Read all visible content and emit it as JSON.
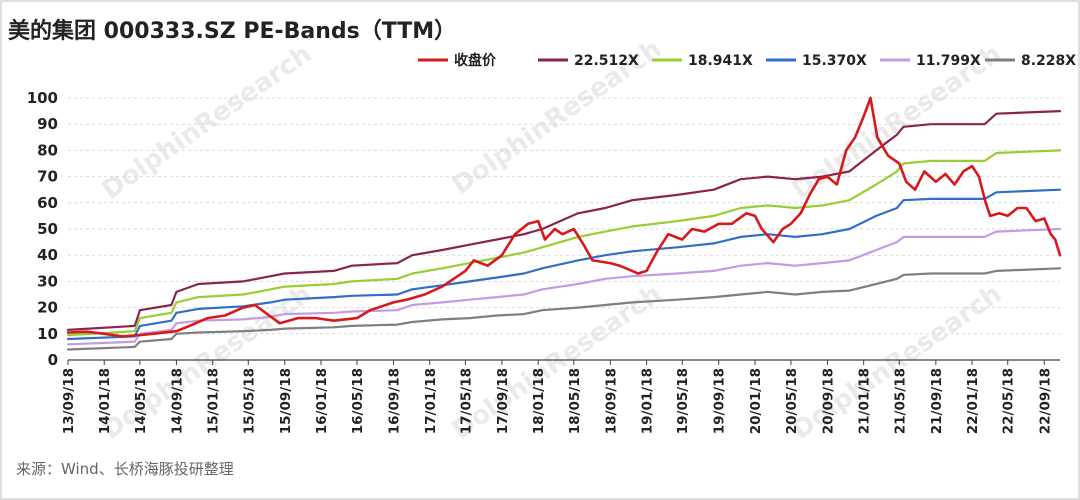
{
  "chart_data": {
    "type": "line",
    "title": "美的集团 000333.SZ   PE-Bands（TTM）",
    "source": "来源：Wind、长桥海豚投研整理",
    "watermark": "DolphinResearch",
    "ylim": [
      0,
      100
    ],
    "yticks": [
      0,
      10,
      20,
      30,
      40,
      50,
      60,
      70,
      80,
      90,
      100
    ],
    "xlim": [
      "2013-09-18",
      "2022-11-10"
    ],
    "xtick_labels": [
      "13/09/18",
      "14/01/18",
      "14/05/18",
      "14/09/18",
      "15/01/18",
      "15/05/18",
      "15/09/18",
      "16/01/18",
      "16/05/18",
      "16/09/18",
      "17/01/18",
      "17/05/18",
      "17/09/18",
      "18/01/18",
      "18/05/18",
      "18/09/18",
      "19/01/18",
      "19/05/18",
      "19/09/18",
      "20/01/18",
      "20/05/18",
      "20/09/18",
      "21/01/18",
      "21/05/18",
      "21/09/18",
      "22/01/18",
      "22/05/18",
      "22/09/18"
    ],
    "series": [
      {
        "name": "收盘价",
        "color": "#d7191c",
        "width": 2.6,
        "points": [
          [
            "2013-09-18",
            10.5
          ],
          [
            "2013-11-20",
            10.8
          ],
          [
            "2014-01-18",
            10
          ],
          [
            "2014-03-20",
            9
          ],
          [
            "2014-05-18",
            9.5
          ],
          [
            "2014-07-01",
            10
          ],
          [
            "2014-09-18",
            11
          ],
          [
            "2014-11-01",
            13
          ],
          [
            "2015-01-01",
            16
          ],
          [
            "2015-03-01",
            17
          ],
          [
            "2015-05-01",
            20
          ],
          [
            "2015-06-10",
            21
          ],
          [
            "2015-07-15",
            18
          ],
          [
            "2015-09-01",
            14
          ],
          [
            "2015-11-01",
            16
          ],
          [
            "2016-01-01",
            16
          ],
          [
            "2016-03-01",
            15
          ],
          [
            "2016-05-18",
            16
          ],
          [
            "2016-07-01",
            19
          ],
          [
            "2016-09-18",
            22
          ],
          [
            "2016-11-01",
            23
          ],
          [
            "2017-01-01",
            25
          ],
          [
            "2017-03-01",
            28
          ],
          [
            "2017-05-18",
            34
          ],
          [
            "2017-06-15",
            38
          ],
          [
            "2017-08-01",
            36
          ],
          [
            "2017-09-18",
            40
          ],
          [
            "2017-11-01",
            48
          ],
          [
            "2017-12-15",
            52
          ],
          [
            "2018-01-18",
            53
          ],
          [
            "2018-02-10",
            46
          ],
          [
            "2018-03-15",
            50
          ],
          [
            "2018-04-10",
            48
          ],
          [
            "2018-05-18",
            50
          ],
          [
            "2018-06-20",
            44
          ],
          [
            "2018-07-20",
            38
          ],
          [
            "2018-09-18",
            37
          ],
          [
            "2018-10-20",
            36
          ],
          [
            "2018-12-20",
            33
          ],
          [
            "2019-01-18",
            34
          ],
          [
            "2019-02-20",
            41
          ],
          [
            "2019-04-01",
            48
          ],
          [
            "2019-05-18",
            46
          ],
          [
            "2019-06-20",
            50
          ],
          [
            "2019-08-01",
            49
          ],
          [
            "2019-09-18",
            52
          ],
          [
            "2019-11-01",
            52
          ],
          [
            "2019-12-20",
            56
          ],
          [
            "2020-01-18",
            55
          ],
          [
            "2020-02-10",
            50
          ],
          [
            "2020-03-20",
            45
          ],
          [
            "2020-04-20",
            50
          ],
          [
            "2020-05-18",
            52
          ],
          [
            "2020-06-20",
            56
          ],
          [
            "2020-07-20",
            63
          ],
          [
            "2020-08-20",
            69
          ],
          [
            "2020-09-18",
            70
          ],
          [
            "2020-10-20",
            67
          ],
          [
            "2020-11-20",
            80
          ],
          [
            "2020-12-20",
            85
          ],
          [
            "2021-01-18",
            93
          ],
          [
            "2021-02-10",
            100
          ],
          [
            "2021-03-05",
            85
          ],
          [
            "2021-04-10",
            78
          ],
          [
            "2021-05-18",
            75
          ],
          [
            "2021-06-10",
            68
          ],
          [
            "2021-07-10",
            65
          ],
          [
            "2021-08-10",
            72
          ],
          [
            "2021-09-18",
            68
          ],
          [
            "2021-10-20",
            71
          ],
          [
            "2021-11-20",
            67
          ],
          [
            "2021-12-20",
            72
          ],
          [
            "2022-01-18",
            74
          ],
          [
            "2022-02-10",
            70
          ],
          [
            "2022-03-05",
            60
          ],
          [
            "2022-03-20",
            55
          ],
          [
            "2022-04-20",
            56
          ],
          [
            "2022-05-18",
            55
          ],
          [
            "2022-06-20",
            58
          ],
          [
            "2022-07-20",
            58
          ],
          [
            "2022-08-20",
            53
          ],
          [
            "2022-09-18",
            54
          ],
          [
            "2022-10-10",
            48
          ],
          [
            "2022-10-25",
            46
          ],
          [
            "2022-11-10",
            40
          ]
        ]
      },
      {
        "name": "22.512X",
        "color": "#8b2252",
        "width": 2.2,
        "points": [
          [
            "2013-09-18",
            11.5
          ],
          [
            "2014-05-01",
            13
          ],
          [
            "2014-05-18",
            19
          ],
          [
            "2014-09-01",
            21
          ],
          [
            "2014-09-18",
            26
          ],
          [
            "2014-12-01",
            29
          ],
          [
            "2015-05-01",
            30
          ],
          [
            "2015-08-01",
            32
          ],
          [
            "2015-09-18",
            33
          ],
          [
            "2016-03-01",
            34
          ],
          [
            "2016-05-01",
            36
          ],
          [
            "2016-10-01",
            37
          ],
          [
            "2016-11-20",
            40
          ],
          [
            "2017-03-01",
            42
          ],
          [
            "2017-06-01",
            44
          ],
          [
            "2017-09-01",
            46
          ],
          [
            "2017-12-01",
            48
          ],
          [
            "2018-02-01",
            50
          ],
          [
            "2018-06-01",
            56
          ],
          [
            "2018-09-01",
            58
          ],
          [
            "2018-12-01",
            61
          ],
          [
            "2019-05-01",
            63
          ],
          [
            "2019-09-01",
            65
          ],
          [
            "2019-12-01",
            69
          ],
          [
            "2020-03-01",
            70
          ],
          [
            "2020-06-01",
            69
          ],
          [
            "2020-09-01",
            70
          ],
          [
            "2020-12-01",
            72
          ],
          [
            "2021-03-01",
            80
          ],
          [
            "2021-05-10",
            86
          ],
          [
            "2021-06-01",
            89
          ],
          [
            "2021-09-01",
            90
          ],
          [
            "2022-03-01",
            90
          ],
          [
            "2022-04-10",
            94
          ],
          [
            "2022-11-10",
            95
          ]
        ]
      },
      {
        "name": "18.941X",
        "color": "#9acd32",
        "width": 2.2,
        "points": [
          [
            "2013-09-18",
            9.5
          ],
          [
            "2014-05-01",
            11
          ],
          [
            "2014-05-18",
            16
          ],
          [
            "2014-09-01",
            18
          ],
          [
            "2014-09-18",
            22
          ],
          [
            "2014-12-01",
            24
          ],
          [
            "2015-05-01",
            25
          ],
          [
            "2015-08-01",
            27
          ],
          [
            "2015-09-18",
            28
          ],
          [
            "2016-03-01",
            29
          ],
          [
            "2016-05-01",
            30
          ],
          [
            "2016-10-01",
            31
          ],
          [
            "2016-11-20",
            33
          ],
          [
            "2017-03-01",
            35
          ],
          [
            "2017-06-01",
            37
          ],
          [
            "2017-09-01",
            39
          ],
          [
            "2017-12-01",
            41
          ],
          [
            "2018-02-01",
            43
          ],
          [
            "2018-06-01",
            47
          ],
          [
            "2018-09-01",
            49
          ],
          [
            "2018-12-01",
            51
          ],
          [
            "2019-05-01",
            53
          ],
          [
            "2019-09-01",
            55
          ],
          [
            "2019-12-01",
            58
          ],
          [
            "2020-03-01",
            59
          ],
          [
            "2020-06-01",
            58
          ],
          [
            "2020-09-01",
            59
          ],
          [
            "2020-12-01",
            61
          ],
          [
            "2021-03-01",
            67
          ],
          [
            "2021-05-10",
            72
          ],
          [
            "2021-06-01",
            75
          ],
          [
            "2021-09-01",
            76
          ],
          [
            "2022-03-01",
            76
          ],
          [
            "2022-04-10",
            79
          ],
          [
            "2022-11-10",
            80
          ]
        ]
      },
      {
        "name": "15.370X",
        "color": "#2f6fc9",
        "width": 2.2,
        "points": [
          [
            "2013-09-18",
            8
          ],
          [
            "2014-05-01",
            9
          ],
          [
            "2014-05-18",
            13
          ],
          [
            "2014-09-01",
            15
          ],
          [
            "2014-09-18",
            18
          ],
          [
            "2014-12-01",
            19.5
          ],
          [
            "2015-05-01",
            20.5
          ],
          [
            "2015-08-01",
            22
          ],
          [
            "2015-09-18",
            23
          ],
          [
            "2016-03-01",
            24
          ],
          [
            "2016-05-01",
            24.5
          ],
          [
            "2016-10-01",
            25
          ],
          [
            "2016-11-20",
            27
          ],
          [
            "2017-03-01",
            28.5
          ],
          [
            "2017-06-01",
            30
          ],
          [
            "2017-09-01",
            31.5
          ],
          [
            "2017-12-01",
            33
          ],
          [
            "2018-02-01",
            35
          ],
          [
            "2018-06-01",
            38
          ],
          [
            "2018-09-01",
            40
          ],
          [
            "2018-12-01",
            41.5
          ],
          [
            "2019-05-01",
            43
          ],
          [
            "2019-09-01",
            44.5
          ],
          [
            "2019-12-01",
            47
          ],
          [
            "2020-03-01",
            48
          ],
          [
            "2020-06-01",
            47
          ],
          [
            "2020-09-01",
            48
          ],
          [
            "2020-12-01",
            50
          ],
          [
            "2021-03-01",
            55
          ],
          [
            "2021-05-10",
            58
          ],
          [
            "2021-06-01",
            61
          ],
          [
            "2021-09-01",
            61.5
          ],
          [
            "2022-03-01",
            61.5
          ],
          [
            "2022-04-10",
            64
          ],
          [
            "2022-11-10",
            65
          ]
        ]
      },
      {
        "name": "11.799X",
        "color": "#c39be3",
        "width": 2.2,
        "points": [
          [
            "2013-09-18",
            6
          ],
          [
            "2014-05-01",
            7
          ],
          [
            "2014-05-18",
            10
          ],
          [
            "2014-09-01",
            11.5
          ],
          [
            "2014-09-18",
            14
          ],
          [
            "2014-12-01",
            15
          ],
          [
            "2015-05-01",
            15.5
          ],
          [
            "2015-08-01",
            16.5
          ],
          [
            "2015-09-18",
            17.5
          ],
          [
            "2016-03-01",
            18
          ],
          [
            "2016-05-01",
            18.5
          ],
          [
            "2016-10-01",
            19
          ],
          [
            "2016-11-20",
            21
          ],
          [
            "2017-03-01",
            22
          ],
          [
            "2017-06-01",
            23
          ],
          [
            "2017-09-01",
            24
          ],
          [
            "2017-12-01",
            25
          ],
          [
            "2018-02-01",
            27
          ],
          [
            "2018-06-01",
            29
          ],
          [
            "2018-09-01",
            31
          ],
          [
            "2018-12-01",
            32
          ],
          [
            "2019-05-01",
            33
          ],
          [
            "2019-09-01",
            34
          ],
          [
            "2019-12-01",
            36
          ],
          [
            "2020-03-01",
            37
          ],
          [
            "2020-06-01",
            36
          ],
          [
            "2020-09-01",
            37
          ],
          [
            "2020-12-01",
            38
          ],
          [
            "2021-03-01",
            42
          ],
          [
            "2021-05-10",
            45
          ],
          [
            "2021-06-01",
            47
          ],
          [
            "2021-09-01",
            47
          ],
          [
            "2022-03-01",
            47
          ],
          [
            "2022-04-10",
            49
          ],
          [
            "2022-11-10",
            50
          ]
        ]
      },
      {
        "name": "8.228X",
        "color": "#7f7f7f",
        "width": 2.2,
        "points": [
          [
            "2013-09-18",
            4
          ],
          [
            "2014-05-01",
            5
          ],
          [
            "2014-05-18",
            7
          ],
          [
            "2014-09-01",
            8
          ],
          [
            "2014-09-18",
            10
          ],
          [
            "2014-12-01",
            10.5
          ],
          [
            "2015-05-01",
            11
          ],
          [
            "2015-08-01",
            11.5
          ],
          [
            "2015-09-18",
            12
          ],
          [
            "2016-03-01",
            12.5
          ],
          [
            "2016-05-01",
            13
          ],
          [
            "2016-10-01",
            13.5
          ],
          [
            "2016-11-20",
            14.5
          ],
          [
            "2017-03-01",
            15.5
          ],
          [
            "2017-06-01",
            16
          ],
          [
            "2017-09-01",
            17
          ],
          [
            "2017-12-01",
            17.5
          ],
          [
            "2018-02-01",
            19
          ],
          [
            "2018-06-01",
            20
          ],
          [
            "2018-09-01",
            21
          ],
          [
            "2018-12-01",
            22
          ],
          [
            "2019-05-01",
            23
          ],
          [
            "2019-09-01",
            24
          ],
          [
            "2019-12-01",
            25
          ],
          [
            "2020-03-01",
            26
          ],
          [
            "2020-06-01",
            25
          ],
          [
            "2020-09-01",
            26
          ],
          [
            "2020-12-01",
            26.5
          ],
          [
            "2021-03-01",
            29
          ],
          [
            "2021-05-10",
            31
          ],
          [
            "2021-06-01",
            32.5
          ],
          [
            "2021-09-01",
            33
          ],
          [
            "2022-03-01",
            33
          ],
          [
            "2022-04-10",
            34
          ],
          [
            "2022-11-10",
            35
          ]
        ]
      }
    ]
  }
}
